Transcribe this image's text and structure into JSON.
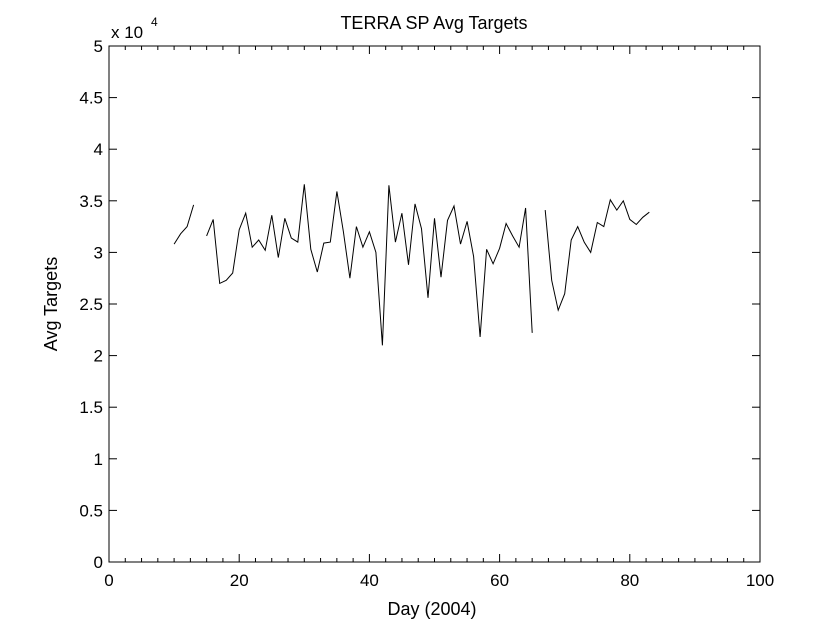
{
  "chart_data": {
    "type": "line",
    "title": "TERRA SP Avg Targets",
    "xlabel": "Day (2004)",
    "ylabel": "Avg Targets",
    "y_multiplier_label": "x 10",
    "y_multiplier_exponent": "4",
    "xlim": [
      0,
      100
    ],
    "ylim": [
      0,
      5
    ],
    "x_ticks": [
      0,
      20,
      40,
      60,
      80,
      100
    ],
    "x_tick_labels": [
      "0",
      "20",
      "40",
      "60",
      "80",
      "100"
    ],
    "y_ticks": [
      0,
      0.5,
      1,
      1.5,
      2,
      2.5,
      3,
      3.5,
      4,
      4.5,
      5
    ],
    "y_tick_labels": [
      "0",
      "0.5",
      "1",
      "1.5",
      "2",
      "2.5",
      "3",
      "3.5",
      "4",
      "4.5",
      "5"
    ],
    "grid": false,
    "line_color": "#000000",
    "series": [
      {
        "segments": [
          {
            "x": [
              10,
              11,
              12,
              13
            ],
            "y": [
              3.08,
              3.18,
              3.25,
              3.46
            ]
          },
          {
            "x": [
              15,
              16,
              17,
              18,
              19,
              20,
              21,
              22,
              23,
              24,
              25,
              26,
              27,
              28,
              29,
              30,
              31,
              32,
              33,
              34,
              35,
              36,
              37,
              38,
              39,
              40,
              41,
              42,
              43,
              44,
              45,
              46,
              47,
              48,
              49,
              50,
              51,
              52,
              53,
              54,
              55,
              56,
              57,
              58,
              59,
              60,
              61,
              62,
              63,
              64,
              65
            ],
            "y": [
              3.16,
              3.32,
              2.7,
              2.73,
              2.8,
              3.22,
              3.38,
              3.05,
              3.12,
              3.02,
              3.36,
              2.95,
              3.33,
              3.14,
              3.1,
              3.66,
              3.03,
              2.81,
              3.09,
              3.1,
              3.59,
              3.2,
              2.75,
              3.25,
              3.05,
              3.2,
              3.0,
              2.1,
              3.65,
              3.1,
              3.38,
              2.88,
              3.47,
              3.23,
              2.56,
              3.33,
              2.76,
              3.31,
              3.45,
              3.08,
              3.3,
              2.96,
              2.18,
              3.03,
              2.89,
              3.04,
              3.28,
              3.16,
              3.05,
              3.43,
              2.22
            ]
          },
          {
            "x": [
              67,
              68,
              69,
              70,
              71,
              72,
              73,
              74,
              75,
              76,
              77,
              78,
              79,
              80,
              81,
              82,
              83
            ],
            "y": [
              3.41,
              2.73,
              2.44,
              2.6,
              3.12,
              3.25,
              3.1,
              3.0,
              3.29,
              3.25,
              3.51,
              3.41,
              3.5,
              3.32,
              3.27,
              3.34,
              3.39
            ]
          }
        ]
      }
    ]
  }
}
